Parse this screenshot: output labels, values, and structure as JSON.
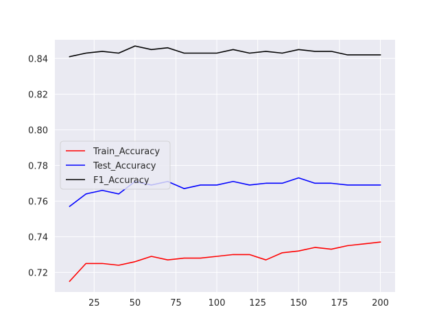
{
  "chart_data": {
    "type": "line",
    "title": "",
    "xlabel": "",
    "ylabel": "",
    "xlim": [
      1,
      209
    ],
    "ylim": [
      0.709,
      0.8505
    ],
    "xticks": [
      25,
      50,
      75,
      100,
      125,
      150,
      175,
      200
    ],
    "yticks": [
      0.72,
      0.74,
      0.76,
      0.78,
      0.8,
      0.82,
      0.84
    ],
    "xtick_labels": [
      "25",
      "50",
      "75",
      "100",
      "125",
      "150",
      "175",
      "200"
    ],
    "ytick_labels": [
      "0.72",
      "0.74",
      "0.76",
      "0.78",
      "0.80",
      "0.82",
      "0.84"
    ],
    "grid": true,
    "legend_position": "center-left",
    "x": [
      10,
      20,
      30,
      40,
      50,
      60,
      70,
      80,
      90,
      100,
      110,
      120,
      130,
      140,
      150,
      160,
      170,
      180,
      190,
      200
    ],
    "series": [
      {
        "name": "Train_Accuracy",
        "color": "#ff0000",
        "values": [
          0.715,
          0.725,
          0.725,
          0.724,
          0.726,
          0.729,
          0.727,
          0.728,
          0.728,
          0.729,
          0.73,
          0.73,
          0.727,
          0.731,
          0.732,
          0.734,
          0.733,
          0.735,
          0.736,
          0.737
        ]
      },
      {
        "name": "Test_Accuracy",
        "color": "#0000ff",
        "values": [
          0.757,
          0.764,
          0.766,
          0.764,
          0.771,
          0.769,
          0.771,
          0.767,
          0.769,
          0.769,
          0.771,
          0.769,
          0.77,
          0.77,
          0.773,
          0.77,
          0.77,
          0.769,
          0.769,
          0.769
        ]
      },
      {
        "name": "F1_Accuracy",
        "color": "#000000",
        "values": [
          0.841,
          0.843,
          0.844,
          0.843,
          0.847,
          0.845,
          0.846,
          0.843,
          0.843,
          0.843,
          0.845,
          0.843,
          0.844,
          0.843,
          0.845,
          0.844,
          0.844,
          0.842,
          0.842,
          0.842
        ]
      }
    ],
    "background": "#eaeaf2",
    "grid_color": "#ffffff",
    "text_color": "#262626"
  }
}
